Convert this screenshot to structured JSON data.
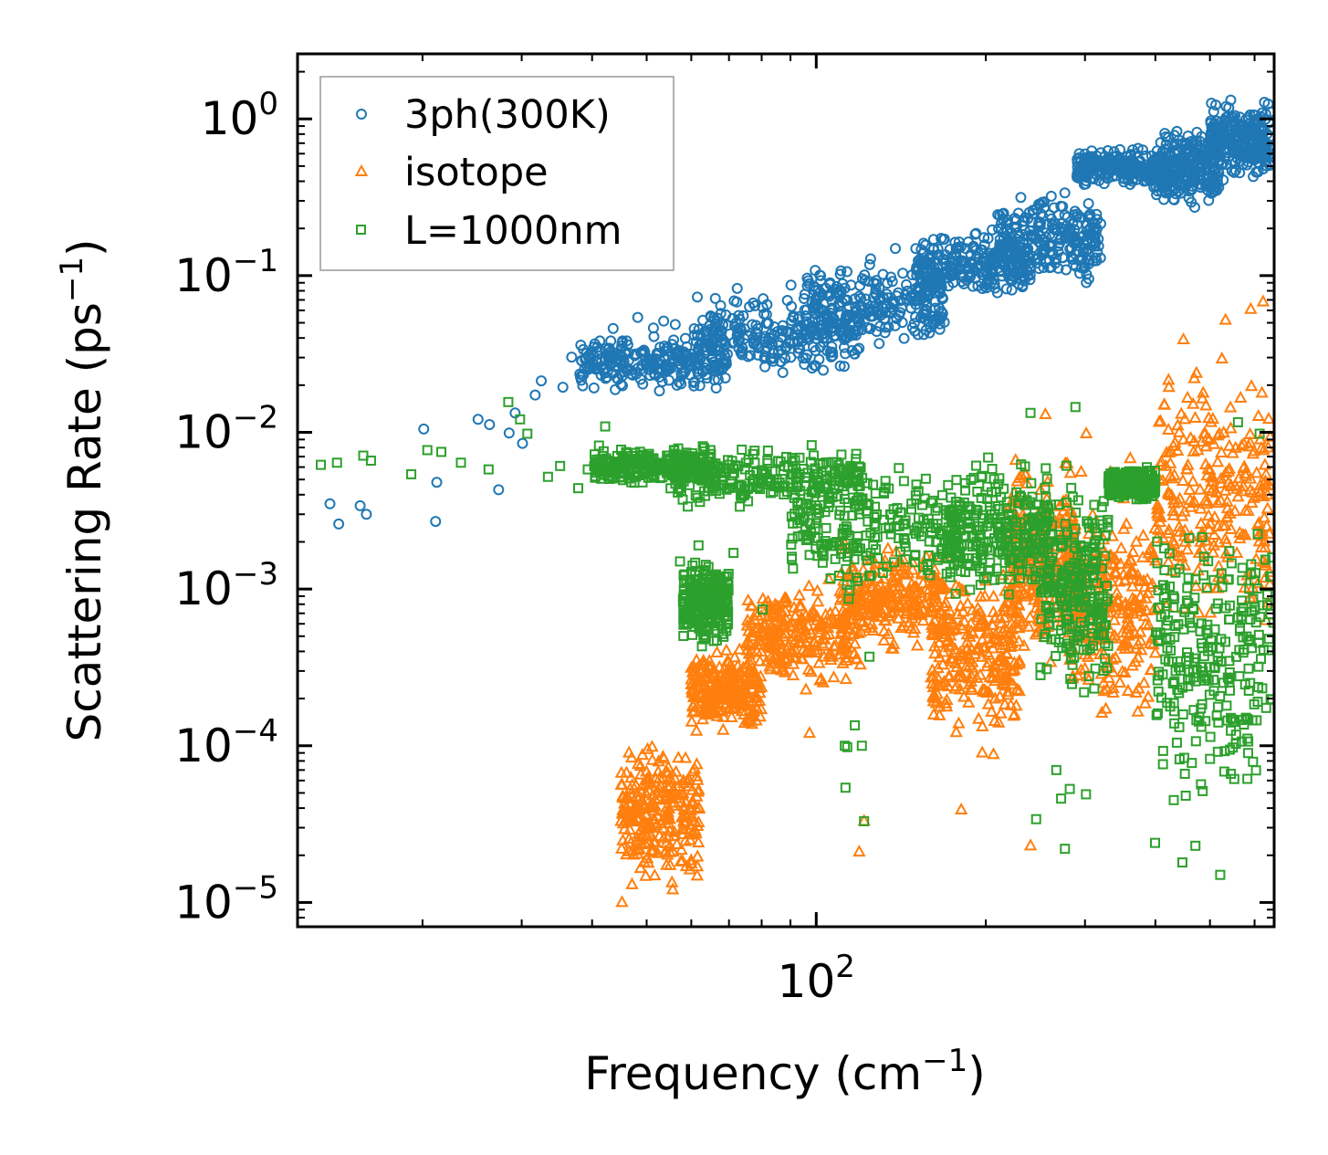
{
  "chart_data": {
    "type": "scatter",
    "x_scale": "log",
    "y_scale": "log",
    "xlabel": "Frequency (cm",
    "xlabel_sup": "−1",
    "xlabel_end": ")",
    "ylabel": "Scattering Rate (ps",
    "ylabel_sup": "−1",
    "ylabel_end": ")",
    "xlim": [
      12,
      650
    ],
    "ylim": [
      7e-06,
      2.6
    ],
    "x_ticks": [
      {
        "value": 100,
        "base": "10",
        "exp": "2"
      }
    ],
    "y_ticks": [
      {
        "value": 1,
        "base": "10",
        "exp": "0"
      },
      {
        "value": 0.1,
        "base": "10",
        "exp": "−1"
      },
      {
        "value": 0.01,
        "base": "10",
        "exp": "−2"
      },
      {
        "value": 0.001,
        "base": "10",
        "exp": "−3"
      },
      {
        "value": 0.0001,
        "base": "10",
        "exp": "−4"
      },
      {
        "value": 1e-05,
        "base": "10",
        "exp": "−5"
      }
    ],
    "legend_position": "top-left",
    "series": [
      {
        "name": "3ph(300K)",
        "marker": "circle",
        "color": "#1f77b4",
        "points": [
          [
            13.7,
            0.0035
          ],
          [
            14.2,
            0.0026
          ],
          [
            15.5,
            0.0034
          ],
          [
            15.9,
            0.003
          ],
          [
            20.1,
            0.0105
          ],
          [
            21.2,
            0.0048
          ],
          [
            21.1,
            0.0027
          ],
          [
            25.1,
            0.0121
          ],
          [
            26.3,
            0.0112
          ],
          [
            27.3,
            0.0043
          ],
          [
            28.5,
            0.0099
          ],
          [
            29.2,
            0.0133
          ],
          [
            30.1,
            0.0085
          ],
          [
            31.7,
            0.0173
          ],
          [
            32.5,
            0.0213
          ],
          [
            35.5,
            0.0194
          ],
          [
            36.8,
            0.0302
          ],
          [
            38.3,
            0.0287
          ],
          [
            39.7,
            0.0258
          ],
          [
            41.3,
            0.0335
          ],
          [
            43.6,
            0.046
          ],
          [
            46.1,
            0.0383
          ],
          [
            48.2,
            0.0541
          ],
          [
            51.4,
            0.0463
          ],
          [
            53.6,
            0.0513
          ],
          [
            56.2,
            0.0488
          ],
          [
            61.5,
            0.073
          ],
          [
            66.2,
            0.0715
          ],
          [
            72.4,
            0.0829
          ],
          [
            80.5,
            0.0712
          ],
          [
            90.2,
            0.087
          ],
          [
            101.8,
            0.1
          ],
          [
            113.4,
            0.106
          ],
          [
            124.9,
            0.128
          ],
          [
            138.2,
            0.149
          ],
          [
            152.7,
            0.127
          ],
          [
            168.9,
            0.171
          ],
          [
            186.2,
            0.164
          ],
          [
            205.3,
            0.196
          ],
          [
            226.8,
            0.227
          ],
          [
            250.1,
            0.287
          ],
          [
            276.3,
            0.337
          ],
          [
            305.2,
            0.463
          ],
          [
            337.4,
            0.574
          ],
          [
            372.6,
            0.649
          ],
          [
            411.5,
            0.574
          ],
          [
            454.4,
            0.701
          ],
          [
            501.8,
            0.94
          ],
          [
            553.9,
            1.05
          ],
          [
            611.2,
            0.72
          ]
        ],
        "bands": [
          {
            "x_from": 38,
            "x_to": 70,
            "y_lo": 0.017,
            "y_hi": 0.045
          },
          {
            "x_from": 60,
            "x_to": 120,
            "y_lo": 0.022,
            "y_hi": 0.08
          },
          {
            "x_from": 95,
            "x_to": 170,
            "y_lo": 0.03,
            "y_hi": 0.13
          },
          {
            "x_from": 150,
            "x_to": 240,
            "y_lo": 0.065,
            "y_hi": 0.2
          },
          {
            "x_from": 210,
            "x_to": 320,
            "y_lo": 0.075,
            "y_hi": 0.4
          },
          {
            "x_from": 290,
            "x_to": 420,
            "y_lo": 0.35,
            "y_hi": 0.68
          },
          {
            "x_from": 400,
            "x_to": 520,
            "y_lo": 0.25,
            "y_hi": 1.0
          },
          {
            "x_from": 500,
            "x_to": 640,
            "y_lo": 0.35,
            "y_hi": 1.45
          }
        ]
      },
      {
        "name": "isotope",
        "marker": "triangle",
        "color": "#ff7f0e",
        "points": [
          [
            45.2,
            1e-05
          ],
          [
            47.1,
            1.3e-05
          ],
          [
            49.5,
            1.8e-05
          ],
          [
            51.8,
            2.4e-05
          ],
          [
            54.6,
            3.6e-05
          ],
          [
            56.9,
            5.5e-05
          ],
          [
            58.6,
            8.3e-05
          ],
          [
            61.3,
            0.000124
          ],
          [
            63.7,
            0.00019
          ],
          [
            66.8,
            0.00027
          ],
          [
            69.9,
            0.00034
          ],
          [
            73.1,
            0.00041
          ],
          [
            76.3,
            0.00044
          ],
          [
            85.1,
            0.00049
          ],
          [
            97.3,
            0.00012
          ],
          [
            119.2,
            2.1e-05
          ],
          [
            121.6,
            3.3e-05
          ],
          [
            180.9,
            3.9e-05
          ],
          [
            240.1,
            2.3e-05
          ],
          [
            255.2,
            0.013
          ],
          [
            301.5,
            0.0098
          ],
          [
            360.9,
            0.0068
          ],
          [
            414.7,
            0.015
          ],
          [
            448.6,
            0.039
          ],
          [
            486.3,
            0.0178
          ],
          [
            532.8,
            0.052
          ],
          [
            590.7,
            0.061
          ],
          [
            621.3,
            0.068
          ],
          [
            637.1,
            0.0046
          ],
          [
            628.3,
            0.00063
          ]
        ],
        "bands": [
          {
            "x_from": 45,
            "x_to": 62,
            "y_lo": 1e-05,
            "y_hi": 0.00014
          },
          {
            "x_from": 60,
            "x_to": 80,
            "y_lo": 0.00011,
            "y_hi": 0.00045
          },
          {
            "x_from": 75,
            "x_to": 120,
            "y_lo": 0.0002,
            "y_hi": 0.0013
          },
          {
            "x_from": 110,
            "x_to": 170,
            "y_lo": 0.00035,
            "y_hi": 0.0022
          },
          {
            "x_from": 160,
            "x_to": 230,
            "y_lo": 8e-05,
            "y_hi": 0.0018
          },
          {
            "x_from": 220,
            "x_to": 290,
            "y_lo": 0.00025,
            "y_hi": 0.009
          },
          {
            "x_from": 280,
            "x_to": 400,
            "y_lo": 9e-05,
            "y_hi": 0.006
          },
          {
            "x_from": 400,
            "x_to": 640,
            "y_lo": 0.0004,
            "y_hi": 0.045
          }
        ]
      },
      {
        "name": "L=1000nm",
        "marker": "square",
        "color": "#2ca02c",
        "points": [
          [
            13.2,
            0.0062
          ],
          [
            14.1,
            0.0064
          ],
          [
            15.7,
            0.0071
          ],
          [
            16.2,
            0.0066
          ],
          [
            19.1,
            0.0054
          ],
          [
            20.4,
            0.0077
          ],
          [
            21.6,
            0.0075
          ],
          [
            23.4,
            0.0064
          ],
          [
            26.2,
            0.0058
          ],
          [
            28.4,
            0.0156
          ],
          [
            29.8,
            0.0121
          ],
          [
            30.7,
            0.0098
          ],
          [
            33.4,
            0.0052
          ],
          [
            35.1,
            0.0061
          ],
          [
            37.8,
            0.0044
          ],
          [
            39.3,
            0.0058
          ],
          [
            42.2,
            0.0109
          ],
          [
            44.8,
            0.0052
          ],
          [
            47.9,
            0.0062
          ],
          [
            57.3,
            0.0015
          ],
          [
            61.8,
            0.0019
          ],
          [
            66.6,
            0.00047
          ],
          [
            71.3,
            0.0017
          ],
          [
            80.3,
            0.00074
          ],
          [
            90.7,
            0.0021
          ],
          [
            112.4,
            0.0001
          ],
          [
            113.5,
            9.8e-05
          ],
          [
            112.7,
            5.4e-05
          ],
          [
            117.1,
            0.000135
          ],
          [
            120.5,
            0.0001
          ],
          [
            121.6,
            3.3e-05
          ],
          [
            124.3,
            0.00037
          ],
          [
            180.6,
            0.0013
          ],
          [
            240.1,
            0.0133
          ],
          [
            245.7,
            3.4e-05
          ],
          [
            266.8,
            7e-05
          ],
          [
            272.1,
            4.6e-05
          ],
          [
            276.4,
            2.2e-05
          ],
          [
            281.9,
            5.3e-05
          ],
          [
            288.5,
            0.0145
          ],
          [
            301.2,
            4.9e-05
          ],
          [
            399.5,
            2.4e-05
          ],
          [
            431.2,
            4.5e-05
          ],
          [
            446.7,
            1.8e-05
          ],
          [
            471.1,
            2.3e-05
          ],
          [
            521.4,
            1.5e-05
          ],
          [
            560.7,
            0.0116
          ],
          [
            612.6,
            0.0098
          ],
          [
            644.3,
            0.0012
          ],
          [
            648.1,
            0.00061
          ]
        ],
        "bands": [
          {
            "x_from": 40,
            "x_to": 65,
            "y_lo": 0.0045,
            "y_hi": 0.0085
          },
          {
            "x_from": 55,
            "x_to": 120,
            "y_lo": 0.0029,
            "y_hi": 0.0088
          },
          {
            "x_from": 58,
            "x_to": 70,
            "y_lo": 0.0004,
            "y_hi": 0.0017
          },
          {
            "x_from": 90,
            "x_to": 180,
            "y_lo": 0.0008,
            "y_hi": 0.0082
          },
          {
            "x_from": 170,
            "x_to": 260,
            "y_lo": 0.0007,
            "y_hi": 0.008
          },
          {
            "x_from": 250,
            "x_to": 330,
            "y_lo": 0.00015,
            "y_hi": 0.0075
          },
          {
            "x_from": 330,
            "x_to": 400,
            "y_lo": 0.0035,
            "y_hi": 0.0063
          },
          {
            "x_from": 400,
            "x_to": 645,
            "y_lo": 3e-05,
            "y_hi": 0.0045
          }
        ]
      }
    ]
  }
}
